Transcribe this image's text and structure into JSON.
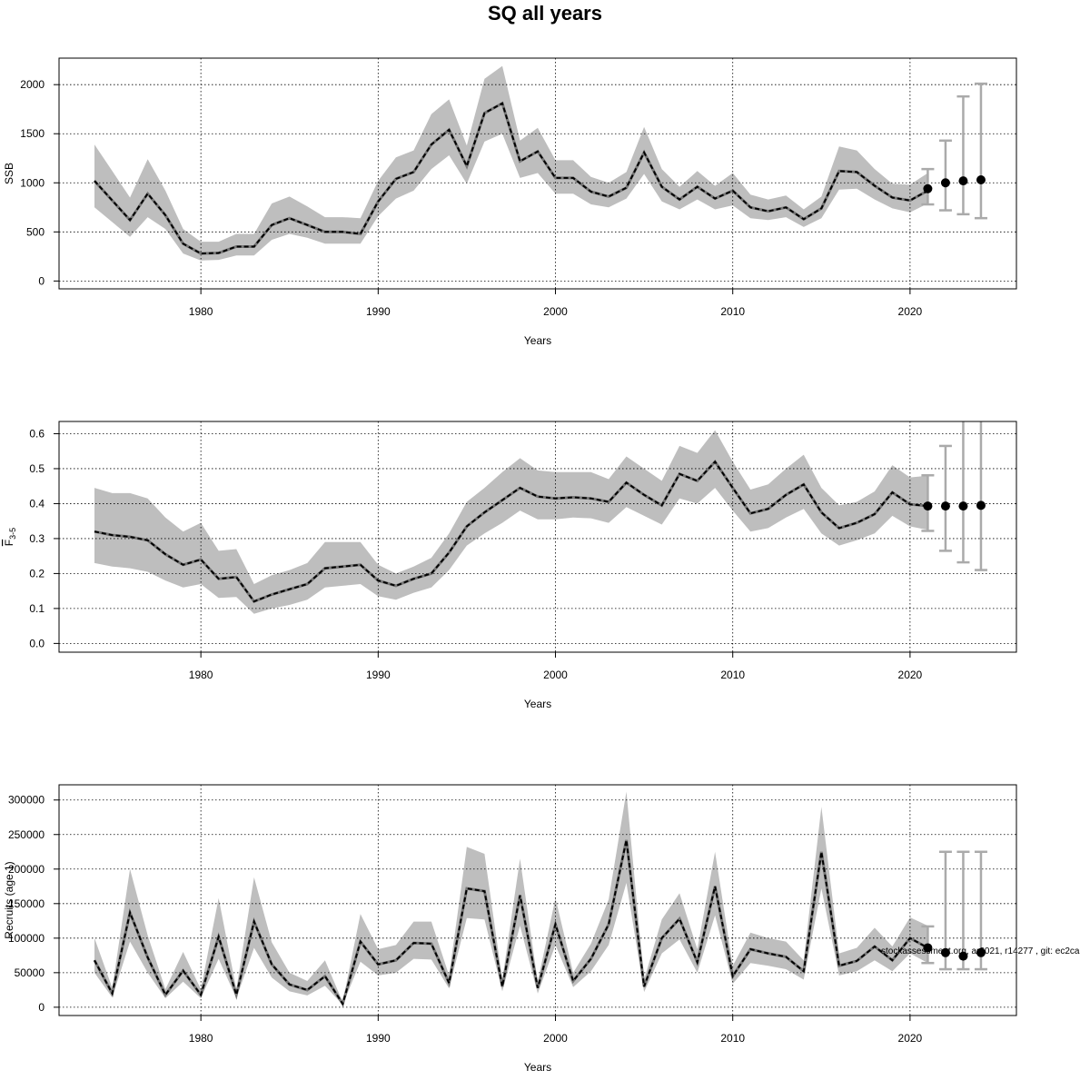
{
  "title": "SQ all years",
  "watermark": "stockassessment.org, ar2021, r14277 , git: ec2ca",
  "chart_data": [
    {
      "type": "line",
      "ylabel": "SSB",
      "xlabel": "Years",
      "xlim": [
        1972,
        2026
      ],
      "ylim": [
        -80,
        2270
      ],
      "xticks": [
        1980,
        1990,
        2000,
        2010,
        2020
      ],
      "yticks": [
        0,
        500,
        1000,
        1500,
        2000
      ],
      "ytick_labels": [
        "0",
        "500",
        "1000",
        "1500",
        "2000"
      ],
      "grid": true,
      "x": [
        1974,
        1975,
        1976,
        1977,
        1978,
        1979,
        1980,
        1981,
        1982,
        1983,
        1984,
        1985,
        1986,
        1987,
        1988,
        1989,
        1990,
        1991,
        1992,
        1993,
        1994,
        1995,
        1996,
        1997,
        1998,
        1999,
        2000,
        2001,
        2002,
        2003,
        2004,
        2005,
        2006,
        2007,
        2008,
        2009,
        2010,
        2011,
        2012,
        2013,
        2014,
        2015,
        2016,
        2017,
        2018,
        2019,
        2020,
        2021
      ],
      "estimate": [
        1020,
        820,
        620,
        890,
        670,
        380,
        280,
        285,
        350,
        350,
        570,
        640,
        570,
        500,
        500,
        480,
        810,
        1040,
        1110,
        1390,
        1540,
        1170,
        1710,
        1810,
        1220,
        1320,
        1050,
        1050,
        910,
        860,
        950,
        1310,
        960,
        830,
        960,
        840,
        920,
        750,
        710,
        750,
        630,
        740,
        1120,
        1110,
        970,
        850,
        820,
        920
      ],
      "lower": [
        750,
        600,
        450,
        650,
        530,
        280,
        210,
        215,
        260,
        260,
        420,
        480,
        440,
        380,
        380,
        380,
        660,
        840,
        920,
        1140,
        1280,
        990,
        1420,
        1500,
        1050,
        1100,
        890,
        890,
        780,
        750,
        840,
        1090,
        810,
        730,
        830,
        730,
        770,
        640,
        620,
        650,
        550,
        640,
        930,
        940,
        830,
        740,
        700,
        790
      ],
      "upper": [
        1390,
        1120,
        850,
        1240,
        920,
        530,
        400,
        400,
        480,
        480,
        790,
        860,
        760,
        650,
        650,
        640,
        1020,
        1260,
        1330,
        1700,
        1850,
        1380,
        2060,
        2190,
        1430,
        1560,
        1230,
        1230,
        1060,
        1000,
        1110,
        1570,
        1140,
        960,
        1120,
        970,
        1100,
        880,
        830,
        870,
        730,
        860,
        1370,
        1330,
        1140,
        990,
        980,
        1100
      ],
      "forecast": {
        "x": [
          2021,
          2022,
          2023,
          2024
        ],
        "median": [
          940,
          1000,
          1020,
          1030
        ],
        "lower": [
          780,
          720,
          680,
          640
        ],
        "upper": [
          1140,
          1430,
          1880,
          2010
        ]
      }
    },
    {
      "type": "line",
      "ylabel": "F3-5",
      "ylabel_main": "F",
      "ylabel_sub": "3-5",
      "xlabel": "Years",
      "xlim": [
        1972,
        2026
      ],
      "ylim": [
        -0.025,
        0.635
      ],
      "xticks": [
        1980,
        1990,
        2000,
        2010,
        2020
      ],
      "yticks": [
        0.0,
        0.1,
        0.2,
        0.3,
        0.4,
        0.5,
        0.6
      ],
      "ytick_labels": [
        "0.0",
        "0.1",
        "0.2",
        "0.3",
        "0.4",
        "0.5",
        "0.6"
      ],
      "grid": true,
      "x": [
        1974,
        1975,
        1976,
        1977,
        1978,
        1979,
        1980,
        1981,
        1982,
        1983,
        1984,
        1985,
        1986,
        1987,
        1988,
        1989,
        1990,
        1991,
        1992,
        1993,
        1994,
        1995,
        1996,
        1997,
        1998,
        1999,
        2000,
        2001,
        2002,
        2003,
        2004,
        2005,
        2006,
        2007,
        2008,
        2009,
        2010,
        2011,
        2012,
        2013,
        2014,
        2015,
        2016,
        2017,
        2018,
        2019,
        2020,
        2021
      ],
      "estimate": [
        0.32,
        0.31,
        0.305,
        0.295,
        0.255,
        0.225,
        0.24,
        0.185,
        0.19,
        0.12,
        0.14,
        0.155,
        0.17,
        0.215,
        0.22,
        0.225,
        0.18,
        0.165,
        0.185,
        0.2,
        0.26,
        0.335,
        0.375,
        0.41,
        0.445,
        0.42,
        0.415,
        0.418,
        0.415,
        0.405,
        0.46,
        0.425,
        0.395,
        0.485,
        0.465,
        0.52,
        0.445,
        0.372,
        0.385,
        0.425,
        0.455,
        0.375,
        0.33,
        0.345,
        0.37,
        0.432,
        0.398,
        0.393
      ],
      "lower": [
        0.23,
        0.22,
        0.215,
        0.205,
        0.18,
        0.16,
        0.17,
        0.13,
        0.133,
        0.085,
        0.1,
        0.11,
        0.125,
        0.16,
        0.165,
        0.17,
        0.135,
        0.125,
        0.145,
        0.16,
        0.21,
        0.28,
        0.315,
        0.345,
        0.38,
        0.355,
        0.355,
        0.36,
        0.358,
        0.345,
        0.39,
        0.365,
        0.34,
        0.415,
        0.4,
        0.445,
        0.38,
        0.32,
        0.33,
        0.36,
        0.385,
        0.315,
        0.28,
        0.295,
        0.315,
        0.365,
        0.335,
        0.325
      ],
      "upper": [
        0.445,
        0.43,
        0.43,
        0.415,
        0.36,
        0.32,
        0.345,
        0.265,
        0.27,
        0.17,
        0.195,
        0.21,
        0.23,
        0.29,
        0.29,
        0.29,
        0.225,
        0.2,
        0.22,
        0.245,
        0.315,
        0.405,
        0.445,
        0.49,
        0.53,
        0.495,
        0.49,
        0.49,
        0.49,
        0.47,
        0.535,
        0.5,
        0.465,
        0.565,
        0.545,
        0.61,
        0.52,
        0.44,
        0.455,
        0.5,
        0.54,
        0.445,
        0.395,
        0.405,
        0.435,
        0.51,
        0.475,
        0.48
      ],
      "forecast": {
        "x": [
          2021,
          2022,
          2023,
          2024
        ],
        "median": [
          0.393,
          0.393,
          0.393,
          0.395
        ],
        "lower": [
          0.322,
          0.265,
          0.232,
          0.21
        ],
        "upper": [
          0.481,
          0.565,
          0.64,
          0.64
        ]
      }
    },
    {
      "type": "line",
      "ylabel": "Recruits (age 1)",
      "xlabel": "Years",
      "xlim": [
        1972,
        2026
      ],
      "ylim": [
        -12000,
        322000
      ],
      "xticks": [
        1980,
        1990,
        2000,
        2010,
        2020
      ],
      "yticks": [
        0,
        50000,
        100000,
        150000,
        200000,
        250000,
        300000
      ],
      "ytick_labels": [
        "0",
        "50000",
        "100000",
        "150000",
        "200000",
        "250000",
        "300000"
      ],
      "grid": true,
      "x": [
        1974,
        1975,
        1976,
        1977,
        1978,
        1979,
        1980,
        1981,
        1982,
        1983,
        1984,
        1985,
        1986,
        1987,
        1988,
        1989,
        1990,
        1991,
        1992,
        1993,
        1994,
        1995,
        1996,
        1997,
        1998,
        1999,
        2000,
        2001,
        2002,
        2003,
        2004,
        2005,
        2006,
        2007,
        2008,
        2009,
        2010,
        2011,
        2012,
        2013,
        2014,
        2015,
        2016,
        2017,
        2018,
        2019,
        2020,
        2021
      ],
      "estimate": [
        68000,
        20000,
        137000,
        72000,
        18000,
        53000,
        18000,
        102000,
        18000,
        124000,
        62000,
        33000,
        25000,
        45000,
        5000,
        95000,
        62000,
        68000,
        93000,
        92000,
        35000,
        172000,
        168000,
        30000,
        162000,
        28000,
        120000,
        38000,
        70000,
        120000,
        242000,
        30000,
        100000,
        128000,
        65000,
        175000,
        45000,
        84000,
        78000,
        73000,
        52000,
        225000,
        60000,
        67000,
        88000,
        68000,
        100000,
        86000
      ],
      "lower": [
        50000,
        14000,
        95000,
        50000,
        13000,
        37000,
        13000,
        70000,
        13000,
        86000,
        43000,
        23000,
        17000,
        31000,
        3500,
        66000,
        46000,
        50000,
        70000,
        69000,
        27000,
        129000,
        127000,
        23000,
        118000,
        20000,
        90000,
        29000,
        52000,
        90000,
        180000,
        22000,
        78000,
        98000,
        50000,
        133000,
        34000,
        64000,
        60000,
        55000,
        40000,
        172000,
        46000,
        52000,
        68000,
        52000,
        78000,
        64000
      ],
      "upper": [
        100000,
        28000,
        200000,
        104000,
        26000,
        80000,
        26000,
        158000,
        26000,
        188000,
        94000,
        50000,
        38000,
        68000,
        7500,
        135000,
        84000,
        90000,
        124000,
        124000,
        46000,
        232000,
        222000,
        40000,
        215000,
        37000,
        158000,
        50000,
        92000,
        156000,
        312000,
        40000,
        127000,
        165000,
        84000,
        225000,
        60000,
        108000,
        100000,
        95000,
        68000,
        290000,
        78000,
        86000,
        115000,
        88000,
        130000,
        118000
      ],
      "forecast": {
        "x": [
          2021,
          2022,
          2023,
          2024
        ],
        "median": [
          86000,
          79000,
          74000,
          79000
        ],
        "lower": [
          64000,
          55000,
          55000,
          55000
        ],
        "upper": [
          117000,
          225000,
          225000,
          225000
        ]
      }
    }
  ]
}
